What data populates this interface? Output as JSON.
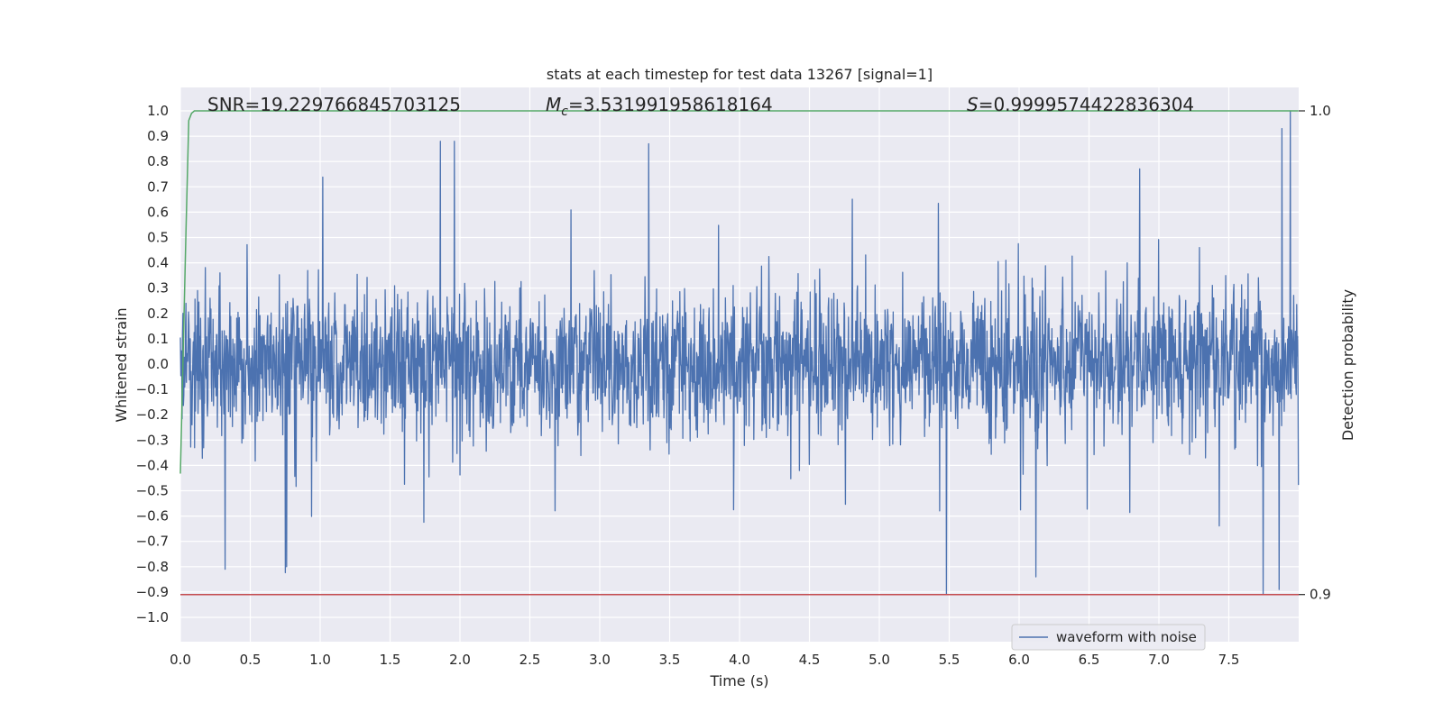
{
  "chart_data": {
    "type": "line",
    "title": "stats at each timestep for test data 13267 [signal=1]",
    "xlabel": "Time (s)",
    "ylabel": "Whitened strain",
    "y2label": "Detection probability",
    "xlim": [
      0.0,
      8.0
    ],
    "ylim": [
      -1.0,
      1.0
    ],
    "y2lim": [
      0.9,
      1.0
    ],
    "xticks": [
      0.0,
      0.5,
      1.0,
      1.5,
      2.0,
      2.5,
      3.0,
      3.5,
      4.0,
      4.5,
      5.0,
      5.5,
      6.0,
      6.5,
      7.0,
      7.5
    ],
    "xtick_labels": [
      "0.0",
      "0.5",
      "1.0",
      "1.5",
      "2.0",
      "2.5",
      "3.0",
      "3.5",
      "4.0",
      "4.5",
      "5.0",
      "5.5",
      "6.0",
      "6.5",
      "7.0",
      "7.5"
    ],
    "yticks": [
      -1.0,
      -0.9,
      -0.8,
      -0.7,
      -0.6,
      -0.5,
      -0.4,
      -0.3,
      -0.2,
      -0.1,
      0.0,
      0.1,
      0.2,
      0.3,
      0.4,
      0.5,
      0.6,
      0.7,
      0.8,
      0.9,
      1.0
    ],
    "ytick_labels": [
      "−1.0",
      "−0.9",
      "−0.8",
      "−0.7",
      "−0.6",
      "−0.5",
      "−0.4",
      "−0.3",
      "−0.2",
      "−0.1",
      "0.0",
      "0.1",
      "0.2",
      "0.3",
      "0.4",
      "0.5",
      "0.6",
      "0.7",
      "0.8",
      "0.9",
      "1.0"
    ],
    "y2ticks": [
      0.9,
      1.0
    ],
    "y2tick_labels": [
      "0.9",
      "1.0"
    ],
    "grid": true,
    "legend": {
      "placement": "bottom-right",
      "entries": [
        "waveform with noise"
      ]
    },
    "annotations": {
      "snr": "SNR=19.229766845703125",
      "mc_symbol": "M",
      "mc_sub": "c",
      "mc_value": "=3.531991958618164",
      "s_symbol": "S",
      "s_value": "=0.9999574422836304"
    },
    "series": [
      {
        "name": "waveform with noise",
        "axis": "left",
        "color": "#4c72b0",
        "x_range": [
          0.0,
          7.998
        ],
        "amplitude_range": [
          -0.91,
          1.0
        ],
        "notable_peaks": [
          {
            "x": 1.86,
            "y": 0.88
          },
          {
            "x": 1.96,
            "y": 0.88
          },
          {
            "x": 3.35,
            "y": 0.87
          },
          {
            "x": 7.88,
            "y": 0.93
          },
          {
            "x": 7.94,
            "y": 1.0
          },
          {
            "x": 5.48,
            "y": -0.91
          },
          {
            "x": 7.86,
            "y": -0.89
          },
          {
            "x": 6.12,
            "y": -0.84
          },
          {
            "x": 0.32,
            "y": -0.81
          },
          {
            "x": 0.76,
            "y": -0.8
          }
        ]
      },
      {
        "axis": "right",
        "color": "#55a868",
        "x": [
          0.0,
          0.02,
          0.04,
          0.06,
          0.08,
          0.1,
          0.2,
          0.5,
          1.0,
          2.0,
          4.0,
          6.0,
          7.998
        ],
        "values": [
          0.925,
          0.95,
          0.975,
          0.998,
          0.9995,
          1.0,
          1.0,
          1.0,
          1.0,
          1.0,
          1.0,
          1.0,
          1.0
        ]
      },
      {
        "axis": "right",
        "color": "#c44e52",
        "x": [
          0.0,
          8.0
        ],
        "values": [
          0.9,
          0.9
        ]
      }
    ]
  }
}
